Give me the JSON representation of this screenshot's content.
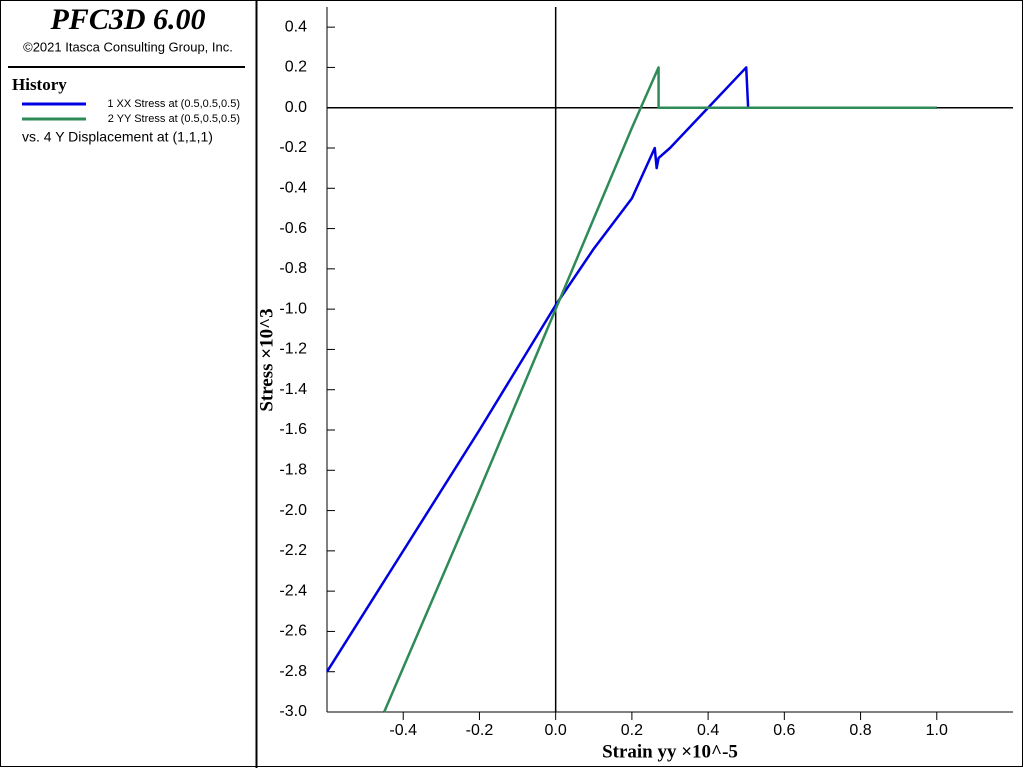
{
  "panel": {
    "title": "PFC3D 6.00",
    "copyright": "©2021 Itasca Consulting Group, Inc.",
    "heading": "History",
    "x_variable": "vs. 4 Y Displacement at (1,1,1)"
  },
  "chart_data": {
    "type": "line",
    "xlabel": "Strain yy ×10^-5",
    "ylabel": "Stress ×10^3",
    "xlim": [
      -0.6,
      1.2
    ],
    "ylim": [
      -3.0,
      0.5
    ],
    "xticks": [
      -0.4,
      -0.2,
      {
        "value": 0,
        "label": "0.0"
      },
      0.2,
      0.4,
      0.6,
      0.8,
      {
        "value": 1,
        "label": "1.0"
      }
    ],
    "yticks": [
      0.4,
      0.2,
      {
        "value": 0,
        "label": "0.0"
      },
      -0.2,
      -0.4,
      -0.6,
      -0.8,
      {
        "value": -1,
        "label": "-1.0"
      },
      -1.2,
      -1.4,
      -1.6,
      -1.8,
      {
        "value": -2,
        "label": "-2.0"
      },
      -2.2,
      -2.4,
      -2.6,
      -2.8,
      {
        "value": -3,
        "label": "-3.0"
      }
    ],
    "series": [
      {
        "name": "1 XX Stress at (0.5,0.5,0.5)",
        "color": "#0000e0",
        "x": [
          -0.6,
          -0.4,
          -0.2,
          0,
          0.1,
          0.2,
          0.26,
          0.265,
          0.27,
          0.3,
          0.4,
          0.5,
          0.505,
          1.0
        ],
        "values": [
          -2.8,
          -2.2,
          -1.6,
          -0.98,
          -0.7,
          -0.45,
          -0.2,
          -0.3,
          -0.25,
          -0.2,
          0,
          0.2,
          0.0,
          0.0
        ]
      },
      {
        "name": "2 YY Stress at (0.5,0.5,0.5)",
        "color": "#2e8b57",
        "x": [
          -0.45,
          -0.2,
          0,
          0.1,
          0.2,
          0.27,
          0.27,
          1.0
        ],
        "values": [
          -3.0,
          -1.9,
          -1.0,
          -0.55,
          -0.1,
          0.2,
          0.0,
          0.0
        ]
      }
    ]
  }
}
